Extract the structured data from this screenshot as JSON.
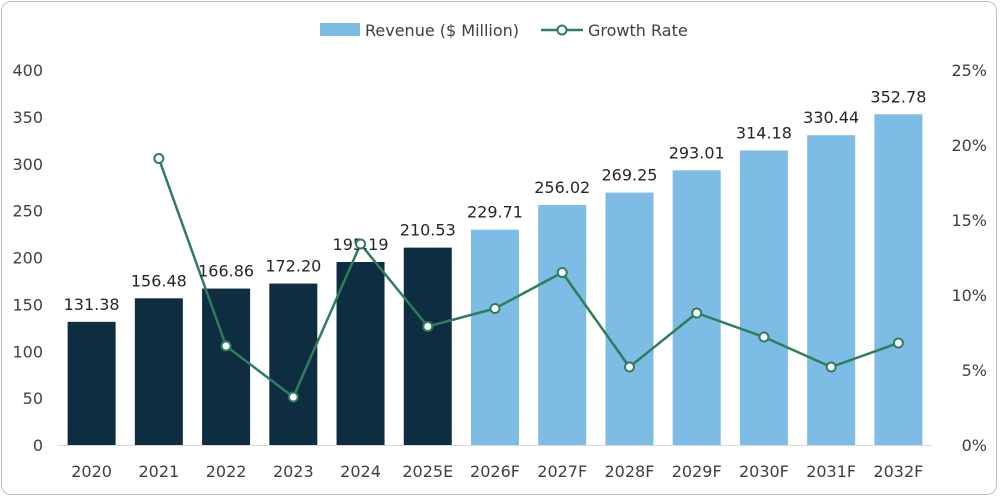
{
  "chart_data": {
    "type": "bar",
    "categories": [
      "2020",
      "2021",
      "2022",
      "2023",
      "2024",
      "2025E",
      "2026F",
      "2027F",
      "2028F",
      "2029F",
      "2030F",
      "2031F",
      "2032F"
    ],
    "series": [
      {
        "name": "Revenue ($ Million)",
        "type": "bar",
        "axis": "left",
        "values": [
          131.38,
          156.48,
          166.86,
          172.2,
          195.19,
          210.53,
          229.71,
          256.02,
          269.25,
          293.01,
          314.18,
          330.44,
          352.78
        ],
        "labels": [
          "131.38",
          "156.48",
          "166.86",
          "172.20",
          "195.19",
          "210.53",
          "229.71",
          "256.02",
          "269.25",
          "293.01",
          "314.18",
          "330.44",
          "352.78"
        ],
        "colors": [
          "#0f2d40",
          "#0f2d40",
          "#0f2d40",
          "#0f2d40",
          "#0f2d40",
          "#0f2d40",
          "#7dbce4",
          "#7dbce4",
          "#7dbce4",
          "#7dbce4",
          "#7dbce4",
          "#7dbce4",
          "#7dbce4"
        ],
        "legend_color": "#7dbce4"
      },
      {
        "name": "Growth Rate",
        "type": "line",
        "axis": "right",
        "values": [
          null,
          19.1,
          6.6,
          3.2,
          13.4,
          7.9,
          9.1,
          11.5,
          5.2,
          8.8,
          7.2,
          5.2,
          6.8
        ],
        "color": "#2e7d5b"
      }
    ],
    "y_left": {
      "ylim": [
        0,
        400
      ],
      "ticks": [
        "0",
        "50",
        "100",
        "150",
        "200",
        "250",
        "300",
        "350",
        "400"
      ]
    },
    "y_right": {
      "ylim": [
        0,
        25
      ],
      "ticks": [
        "0%",
        "5%",
        "10%",
        "15%",
        "20%",
        "25%"
      ]
    },
    "legend_position": "top-center",
    "grid": false
  }
}
